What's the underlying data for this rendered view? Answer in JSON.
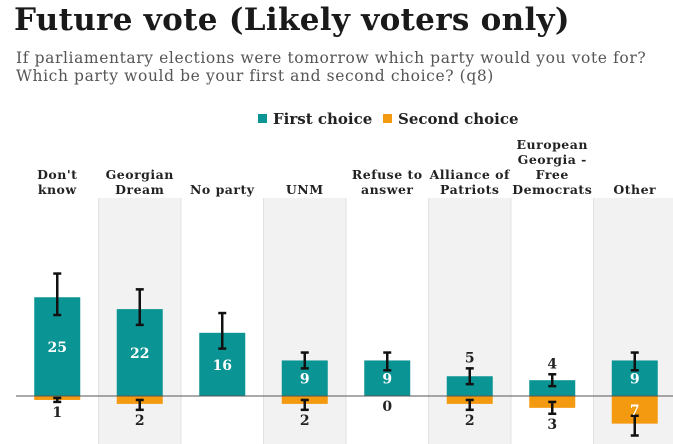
{
  "title": "Future vote (Likely voters only)",
  "subtitle": "If parliamentary elections were tomorrow which party would you vote for? Which party would be your first and second choice? (q8)",
  "chart_data": {
    "type": "bar",
    "title": "Future vote (Likely voters only)",
    "subtitle": "If parliamentary elections were tomorrow which party would you vote for? Which party would be your first and second choice? (q8)",
    "categories": [
      [
        "Don't",
        "know"
      ],
      [
        "Georgian",
        "Dream"
      ],
      [
        "No party"
      ],
      [
        "UNM"
      ],
      [
        "Refuse to",
        "answer"
      ],
      [
        "Alliance of",
        "Patriots"
      ],
      [
        "European",
        "Georgia -",
        "Free",
        "Democrats"
      ],
      [
        "Other"
      ]
    ],
    "series": [
      {
        "name": "First choice",
        "color": "#0b9494",
        "values": [
          25,
          22,
          16,
          9,
          9,
          5,
          4,
          9
        ],
        "error_low": [
          20.5,
          18,
          12,
          7,
          6.5,
          3,
          2.5,
          6.5
        ],
        "error_high": [
          31,
          27,
          21,
          11,
          11,
          7,
          5.5,
          11
        ]
      },
      {
        "name": "Second choice",
        "color": "#f39a11",
        "values": [
          1,
          2,
          null,
          2,
          0,
          2,
          3,
          7
        ],
        "error_low": [
          0.5,
          1,
          null,
          1,
          0,
          1,
          1.5,
          5
        ],
        "error_high": [
          1.5,
          3.5,
          null,
          3.5,
          0,
          3.5,
          4.5,
          10
        ]
      }
    ],
    "xlabel": "",
    "ylabel": "",
    "ylim": [
      -12,
      35
    ],
    "legend": "top-center",
    "grid": false
  }
}
